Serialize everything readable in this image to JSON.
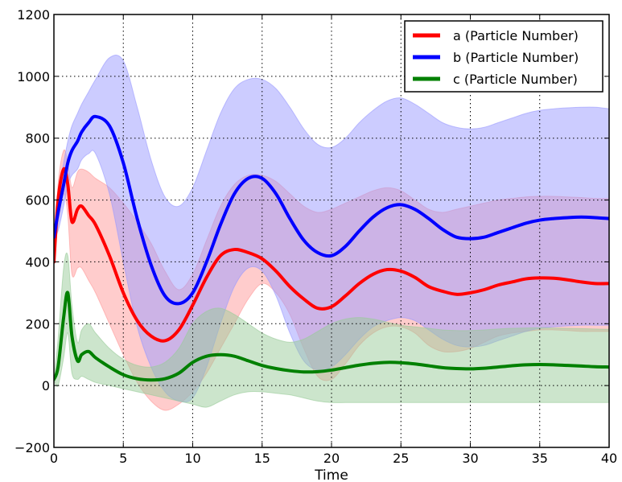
{
  "chart_data": {
    "type": "line",
    "title": "",
    "xlabel": "Time",
    "ylabel": "",
    "xlim": [
      0,
      40
    ],
    "ylim": [
      -200,
      1200
    ],
    "xticks": [
      0,
      5,
      10,
      15,
      20,
      25,
      30,
      35,
      40
    ],
    "yticks": [
      -200,
      0,
      200,
      400,
      600,
      800,
      1000,
      1200
    ],
    "xtick_labels": [
      "0",
      "5",
      "10",
      "15",
      "20",
      "25",
      "30",
      "35",
      "40"
    ],
    "ytick_labels": [
      "−200",
      "0",
      "200",
      "400",
      "600",
      "800",
      "1000",
      "1200"
    ],
    "grid": true,
    "grid_style": "dotted",
    "legend_position": "top-right",
    "x": [
      0,
      0.3,
      0.7,
      1,
      1.3,
      1.7,
      2,
      2.5,
      3,
      4,
      5,
      6,
      7,
      8,
      9,
      10,
      11,
      12,
      13,
      14,
      15,
      16,
      17,
      18,
      19,
      20,
      21,
      22,
      23,
      24,
      25,
      26,
      27,
      28,
      29,
      30,
      31,
      32,
      33,
      34,
      35,
      36,
      37,
      38,
      39,
      40
    ],
    "series": [
      {
        "name": "a (Particle Number)",
        "color": "#ff0000",
        "fill": "#ff9999",
        "values": [
          400,
          600,
          700,
          650,
          530,
          570,
          580,
          550,
          520,
          420,
          300,
          210,
          160,
          145,
          180,
          260,
          350,
          420,
          440,
          430,
          410,
          370,
          320,
          280,
          250,
          255,
          290,
          330,
          360,
          375,
          370,
          350,
          320,
          305,
          295,
          300,
          310,
          325,
          335,
          345,
          348,
          347,
          342,
          335,
          330,
          330
        ],
        "upper": [
          400,
          650,
          760,
          720,
          640,
          690,
          700,
          690,
          670,
          640,
          590,
          530,
          460,
          370,
          310,
          360,
          470,
          580,
          650,
          680,
          680,
          660,
          620,
          580,
          560,
          570,
          590,
          610,
          630,
          640,
          630,
          600,
          570,
          560,
          570,
          580,
          590,
          600,
          605,
          610,
          612,
          612,
          610,
          608,
          605,
          605
        ],
        "lower": [
          400,
          520,
          620,
          550,
          360,
          380,
          380,
          340,
          300,
          200,
          100,
          10,
          -50,
          -80,
          -60,
          -20,
          40,
          120,
          200,
          280,
          330,
          300,
          230,
          120,
          30,
          20,
          70,
          130,
          170,
          190,
          190,
          170,
          130,
          110,
          110,
          120,
          140,
          160,
          170,
          175,
          180,
          180,
          178,
          175,
          175,
          175
        ]
      },
      {
        "name": "b (Particle Number)",
        "color": "#0000ff",
        "fill": "#9999ff",
        "values": [
          480,
          560,
          650,
          720,
          760,
          790,
          820,
          850,
          870,
          840,
          720,
          540,
          390,
          290,
          265,
          300,
          400,
          520,
          620,
          670,
          670,
          620,
          540,
          470,
          430,
          420,
          450,
          500,
          545,
          575,
          585,
          570,
          540,
          505,
          480,
          475,
          480,
          495,
          510,
          525,
          535,
          540,
          543,
          545,
          543,
          540
        ],
        "upper": [
          480,
          620,
          720,
          790,
          840,
          880,
          910,
          950,
          990,
          1060,
          1050,
          900,
          730,
          610,
          580,
          640,
          760,
          880,
          960,
          990,
          990,
          960,
          900,
          830,
          780,
          770,
          800,
          850,
          890,
          920,
          930,
          910,
          880,
          850,
          835,
          830,
          835,
          850,
          865,
          880,
          890,
          895,
          898,
          900,
          900,
          895
        ],
        "lower": [
          480,
          500,
          580,
          650,
          680,
          700,
          730,
          750,
          750,
          620,
          400,
          190,
          60,
          -20,
          -50,
          -40,
          60,
          200,
          320,
          380,
          370,
          290,
          170,
          80,
          50,
          60,
          100,
          150,
          190,
          210,
          220,
          210,
          180,
          150,
          130,
          125,
          130,
          145,
          160,
          175,
          185,
          190,
          193,
          195,
          195,
          195
        ]
      },
      {
        "name": "c (Particle Number)",
        "color": "#008000",
        "fill": "#99cc99",
        "values": [
          20,
          60,
          220,
          300,
          160,
          80,
          100,
          110,
          90,
          60,
          35,
          22,
          18,
          22,
          40,
          75,
          95,
          100,
          95,
          80,
          65,
          55,
          48,
          44,
          45,
          50,
          58,
          66,
          72,
          75,
          74,
          70,
          64,
          58,
          55,
          54,
          56,
          60,
          64,
          67,
          68,
          67,
          65,
          63,
          61,
          60
        ],
        "upper": [
          20,
          150,
          380,
          420,
          260,
          140,
          180,
          200,
          170,
          120,
          85,
          65,
          60,
          75,
          120,
          200,
          240,
          250,
          230,
          200,
          170,
          150,
          140,
          150,
          175,
          200,
          215,
          220,
          215,
          205,
          195,
          190,
          185,
          180,
          178,
          178,
          180,
          183,
          185,
          186,
          187,
          186,
          185,
          184,
          183,
          182
        ],
        "lower": [
          20,
          0,
          90,
          170,
          40,
          20,
          30,
          20,
          10,
          0,
          -10,
          -20,
          -30,
          -40,
          -50,
          -60,
          -70,
          -50,
          -30,
          -20,
          -20,
          -25,
          -30,
          -40,
          -50,
          -55,
          -55,
          -55,
          -55,
          -55,
          -55,
          -55,
          -55,
          -55,
          -55,
          -55,
          -55,
          -55,
          -55,
          -55,
          -55,
          -55,
          -55,
          -55,
          -55,
          -55
        ]
      }
    ]
  }
}
